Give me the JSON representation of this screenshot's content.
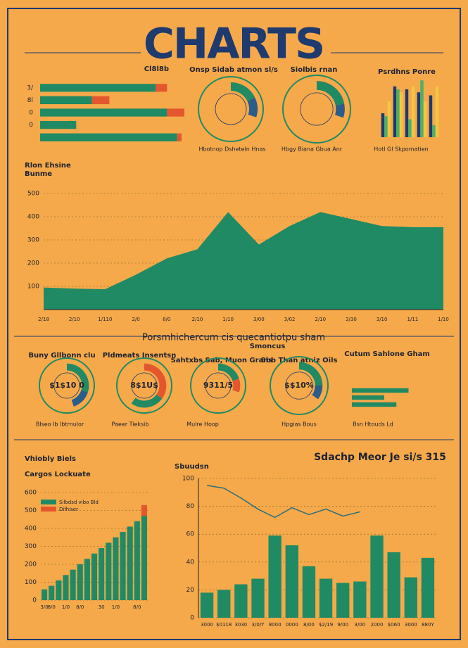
{
  "header": {
    "title": "CHARTS",
    "section_title": "Porsmhichercum cis quecantiotpu sham",
    "section_subtitle": "Smoncus"
  },
  "chart_data": [
    {
      "type": "hbar",
      "title": "Cl8l8b",
      "categories": [
        "3/",
        "8l",
        "0",
        "0",
        null
      ],
      "series": [
        {
          "color": "#1f8a64",
          "values": [
            80,
            36,
            88,
            25,
            95
          ]
        },
        {
          "color": "#e4572e",
          "values": [
            8,
            12,
            12,
            0,
            3
          ]
        }
      ],
      "xlim": [
        0,
        100
      ]
    },
    {
      "type": "donut",
      "title": "Onsp Sidab atmon sl/s",
      "caption": "Hbotnop Dsheteln Hnas",
      "values": [
        18,
        12,
        70
      ],
      "colors": [
        "#1f8a64",
        "#2b5c8a",
        "#f5a94a"
      ]
    },
    {
      "type": "donut",
      "title": "Siolbis rnan",
      "caption": "Hbgy Biana Gbua Anr",
      "values": [
        22,
        8,
        70
      ],
      "colors": [
        "#1f8a64",
        "#2b5c8a",
        "#f5a94a"
      ]
    },
    {
      "type": "vbar",
      "title": "Psrdhns Ponre",
      "caption": "Hotl Gl Skpomatien",
      "series": [
        {
          "color": "#1e3a6e",
          "values": [
            40,
            85,
            80,
            75,
            70
          ]
        },
        {
          "color": "#4caf6a",
          "values": [
            35,
            80,
            30,
            95,
            20
          ]
        },
        {
          "color": "#f3c63f",
          "values": [
            60,
            75,
            85,
            60,
            85
          ]
        }
      ],
      "ylim": [
        0,
        100
      ]
    },
    {
      "type": "area",
      "title": "Rlon Ehsine",
      "subtitle": "Bunme",
      "color": "#1f8a64",
      "categories": [
        "2/18",
        "2/10",
        "1/110",
        "2/0",
        "8/0",
        "2/10",
        "1/10",
        "3/00",
        "3/02",
        "2/10",
        "3/30",
        "3/10",
        "1/11",
        "1/10"
      ],
      "values": [
        95,
        90,
        88,
        150,
        220,
        260,
        420,
        280,
        360,
        420,
        390,
        360,
        355,
        355
      ],
      "ylim": [
        0,
        500
      ],
      "yticks": [
        100,
        200,
        300,
        400,
        500
      ],
      "grid": true
    },
    {
      "type": "donut",
      "title": "Buny Gllbonn clu",
      "center_label": "$1$10 0",
      "caption": "Blseo Ib lbtrnulor",
      "values": [
        30,
        15,
        55
      ],
      "colors": [
        "#1f8a64",
        "#2b5c8a",
        "#f5a94a"
      ]
    },
    {
      "type": "donut",
      "title": "Pldmeats Insentsn",
      "center_label": "8$1U$",
      "caption": "Paeer Tieksib",
      "values": [
        35,
        25,
        40
      ],
      "colors": [
        "#e4572e",
        "#1f8a64",
        "#f5a94a"
      ]
    },
    {
      "type": "donut",
      "title": "Sahtxbs Sab, Muon Grans",
      "center_label": "9311/5",
      "caption": "Mulre Hoop",
      "values": [
        20,
        10,
        70
      ],
      "colors": [
        "#1f8a64",
        "#e4572e",
        "#f5a94a"
      ]
    },
    {
      "type": "donut",
      "title": "Sbb Than atniz Oils",
      "center_label": "$$10%",
      "caption": "Hpgias Bous",
      "values": [
        25,
        10,
        65
      ],
      "colors": [
        "#1f8a64",
        "#2b5c8a",
        "#f5a94a"
      ]
    },
    {
      "type": "hbar",
      "title": "Cutum Sahlone Gham",
      "caption": "Bsn Htouds Ld",
      "categories": [
        null,
        null,
        null
      ],
      "series": [
        {
          "color": "#1f8a64",
          "values": [
            70,
            40,
            55
          ]
        }
      ],
      "xlim": [
        0,
        100
      ]
    },
    {
      "type": "vbar",
      "title": "Vhiobly Biels",
      "subtitle": "Cargos Lockuate",
      "stacked": true,
      "legend": "top-left",
      "categories": [
        "3/0",
        "8/0",
        null,
        "1/0",
        null,
        "8/0",
        null,
        null,
        "30",
        null,
        "1/0",
        null,
        null,
        "8/0",
        null
      ],
      "series": [
        {
          "name": "Silbdsd vibo Bld",
          "color": "#1f8a64",
          "values": [
            60,
            80,
            110,
            140,
            170,
            200,
            230,
            260,
            290,
            320,
            350,
            380,
            410,
            440,
            470
          ]
        },
        {
          "name": "Difhiser",
          "color": "#e4572e",
          "values": [
            0,
            0,
            0,
            0,
            0,
            0,
            0,
            0,
            0,
            0,
            0,
            0,
            0,
            0,
            60
          ]
        }
      ],
      "ylim": [
        0,
        600
      ],
      "yticks": [
        0,
        100,
        200,
        300,
        400,
        500,
        600
      ],
      "grid": true
    },
    {
      "type": "combo",
      "title": "Sbuudsn",
      "subtitle": "Sdachp Meor Je si/s 315",
      "categories": [
        "3000",
        "$0118",
        "3030",
        "3/0/Y",
        "8000",
        "0000",
        "8/00",
        "$2/19",
        "9/00",
        "3/00",
        "2000",
        "$060",
        "3000",
        "880Y"
      ],
      "series": [
        {
          "type": "bar",
          "color": "#1f8a64",
          "values": [
            18,
            20,
            24,
            28,
            59,
            52,
            37,
            28,
            25,
            26,
            59,
            47,
            29,
            43
          ]
        },
        {
          "type": "line",
          "color": "#2b6f7a",
          "values": [
            95,
            93,
            86,
            78,
            72,
            79,
            74,
            78,
            73,
            76,
            null,
            null,
            null,
            null
          ]
        }
      ],
      "ylim": [
        0,
        100
      ],
      "yticks": [
        0,
        20,
        40,
        60,
        80,
        100
      ],
      "grid": true
    }
  ]
}
